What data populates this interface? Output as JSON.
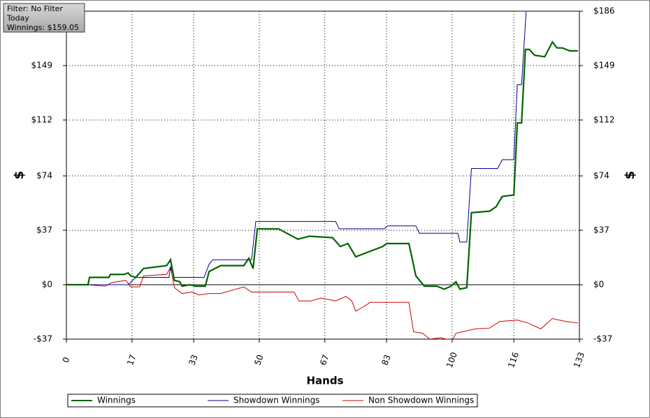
{
  "chart_data": {
    "type": "line",
    "annotations": [
      "Filter: No Filter",
      "Today",
      "Winnings: $159.05"
    ],
    "xlabel": "Hands",
    "ylabel": "$",
    "y2label": "$",
    "xlim": [
      0,
      133
    ],
    "xticks": [
      0,
      17,
      33,
      50,
      67,
      83,
      100,
      116,
      133
    ],
    "ylim": [
      -37,
      186
    ],
    "yticks": [
      {
        "value": 186,
        "label": "$186"
      },
      {
        "value": 149,
        "label": "$149"
      },
      {
        "value": 112,
        "label": "$112"
      },
      {
        "value": 74,
        "label": "$74"
      },
      {
        "value": 37,
        "label": "$37"
      },
      {
        "value": 0,
        "label": "$0"
      },
      {
        "value": -37,
        "label": "-$37"
      }
    ],
    "y2lim": [
      -37,
      186
    ],
    "y2ticks": [
      {
        "value": 186,
        "label": "$186"
      },
      {
        "value": 149,
        "label": "$149"
      },
      {
        "value": 112,
        "label": "$112"
      },
      {
        "value": 74,
        "label": "$74"
      },
      {
        "value": 37,
        "label": "$37"
      },
      {
        "value": 0,
        "label": "$0"
      },
      {
        "value": -37,
        "label": "-$37"
      }
    ],
    "grid": true,
    "legend": "bottom",
    "series": [
      {
        "name": "Winnings",
        "color": "#006400",
        "x": [
          0,
          5.6,
          6,
          11,
          11.4,
          15,
          16,
          16.7,
          18,
          20,
          26,
          27,
          28,
          29.4,
          30,
          32,
          33.5,
          36,
          37,
          40,
          46,
          47.3,
          48.4,
          49.5,
          51.6,
          55,
          60,
          63,
          69,
          71,
          73,
          75,
          78,
          82,
          83,
          88.8,
          90.6,
          92.8,
          96,
          98,
          99.7,
          101,
          102,
          103.8,
          105,
          109.7,
          111.4,
          113,
          116,
          116.9,
          118,
          119,
          120,
          121.4,
          124,
          126,
          127.2,
          128.6,
          130.5,
          132.6
        ],
        "values": [
          0,
          0,
          5,
          5,
          7,
          7,
          8,
          6,
          5,
          11,
          13,
          17,
          3,
          2,
          -1,
          0,
          -1,
          -1,
          9,
          13,
          13,
          18,
          11,
          38,
          38,
          38,
          31,
          33,
          32,
          26,
          28,
          19,
          22,
          26,
          28,
          28,
          6,
          -1,
          -1,
          -3,
          -1,
          2,
          -3,
          -2,
          49,
          50,
          53,
          60,
          61,
          110,
          110,
          160,
          160,
          156,
          155,
          165,
          161,
          161,
          159,
          159
        ]
      },
      {
        "name": "Showdown Winnings",
        "color": "#00008b",
        "x": [
          0,
          16,
          18,
          26.6,
          27,
          28,
          35.7,
          37,
          38,
          48,
          49.1,
          69.8,
          70.7,
          82.4,
          83.3,
          90.6,
          91.5,
          101.5,
          102,
          103.8,
          105,
          111.8,
          113,
          116,
          116.9,
          118,
          119.2
        ],
        "values": [
          0,
          0,
          5,
          5,
          12,
          5,
          5,
          14,
          17,
          17,
          43,
          43,
          38,
          38,
          40,
          40,
          35,
          35,
          29,
          29,
          79,
          79,
          85,
          85,
          136,
          136,
          186
        ]
      },
      {
        "name": "Non Showdown Winnings",
        "color": "#cc0000",
        "x": [
          0,
          5.6,
          10,
          11.8,
          15.4,
          16.7,
          19,
          20,
          26,
          27,
          28,
          30,
          32.6,
          34.4,
          37,
          40,
          42.6,
          46,
          48,
          51.6,
          59,
          60.3,
          63.4,
          66,
          69.8,
          72.5,
          74,
          75,
          77,
          78.8,
          88.8,
          90,
          92.4,
          94.2,
          97,
          100,
          101,
          106,
          109.7,
          112.3,
          116.9,
          119.6,
          123,
          126,
          129.5,
          132.6
        ],
        "values": [
          0,
          0,
          -1,
          1.5,
          3,
          -1.5,
          -1.5,
          6,
          7,
          12,
          -2,
          -6,
          -5,
          -7,
          -6,
          -6,
          -4,
          -1.5,
          -5,
          -5,
          -5,
          -11,
          -11,
          -9,
          -11,
          -8,
          -11,
          -18,
          -15,
          -12,
          -12,
          -32,
          -33,
          -37,
          -36,
          -38,
          -33,
          -30,
          -29.5,
          -25,
          -24,
          -26,
          -30,
          -23,
          -25,
          -26
        ]
      }
    ]
  }
}
